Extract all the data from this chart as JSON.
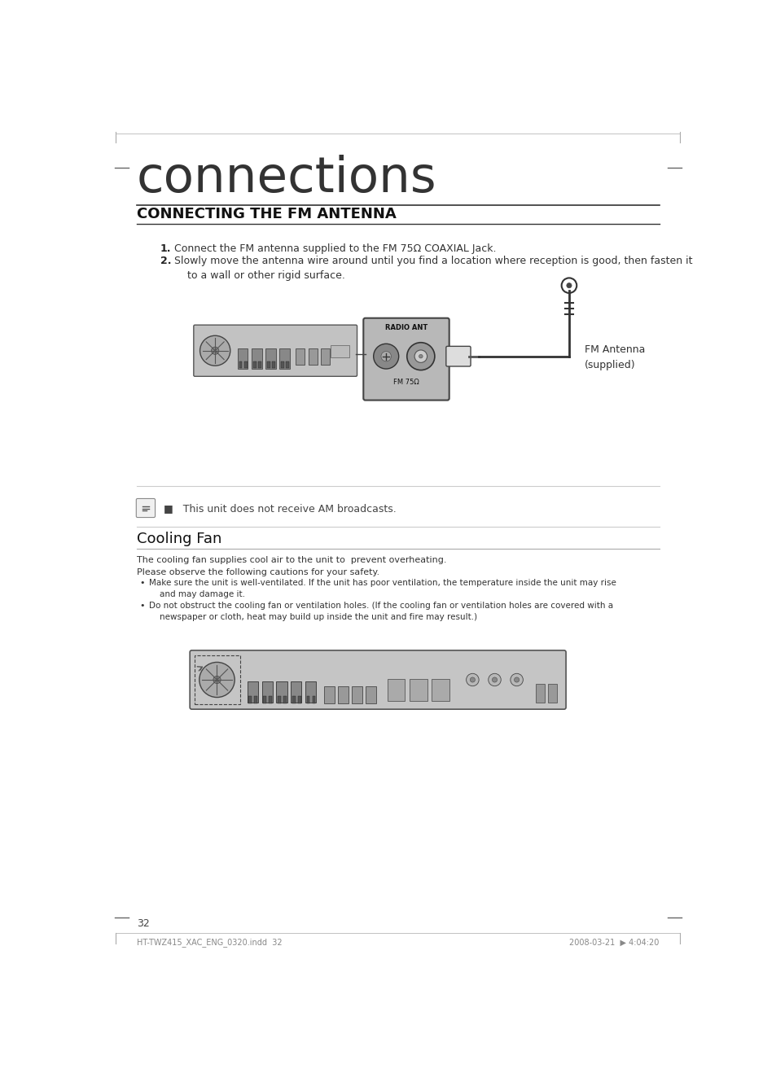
{
  "bg_color": "#ffffff",
  "page_title": "connections",
  "section_title": "CONNECTING THE FM ANTENNA",
  "steps": [
    "Connect the FM antenna supplied to the FM 75Ω COAXIAL Jack.",
    "Slowly move the antenna wire around until you find a location where reception is good, then fasten it\n    to a wall or other rigid surface."
  ],
  "step_numbers": [
    "1.",
    "2."
  ],
  "note_text": "■   This unit does not receive AM broadcasts.",
  "cooling_title": "Cooling Fan",
  "cooling_intro": "The cooling fan supplies cool air to the unit to  prevent overheating.\nPlease observe the following cautions for your safety.",
  "cooling_bullets": [
    "Make sure the unit is well-ventilated. If the unit has poor ventilation, the temperature inside the unit may rise\n    and may damage it.",
    "Do not obstruct the cooling fan or ventilation holes. (If the cooling fan or ventilation holes are covered with a\n    newspaper or cloth, heat may build up inside the unit and fire may result.)"
  ],
  "antenna_label": "FM Antenna\n(supplied)",
  "page_number": "32",
  "footer_left": "HT-TWZ415_XAC_ENG_0320.indd  32",
  "footer_right": "2008-03-21  ▶ 4:04:20"
}
